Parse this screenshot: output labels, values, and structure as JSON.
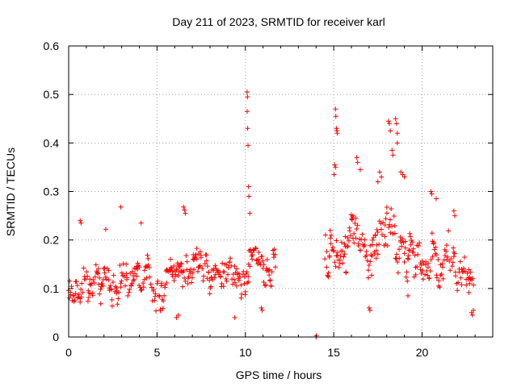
{
  "chart_data": {
    "type": "scatter",
    "title": "Day 211 of 2023, SRMTID for receiver karl",
    "xlabel": "GPS time / hours",
    "ylabel": "SRMTID / TECUs",
    "xlim": [
      0,
      24
    ],
    "ylim": [
      0,
      0.6
    ],
    "xticks": [
      "0",
      "5",
      "10",
      "15",
      "20"
    ],
    "yticks": [
      "0",
      "0.1",
      "0.2",
      "0.3",
      "0.4",
      "0.5",
      "0.6"
    ],
    "grid": true,
    "marker": "plus",
    "color": "#ff0000",
    "series": [
      {
        "name": "SRMTID",
        "segments": [
          {
            "x_start": 0.0,
            "x_end": 11.7,
            "step": 0.05,
            "baseline": [
              [
                0,
                0.1
              ],
              [
                1,
                0.12
              ],
              [
                2,
                0.11
              ],
              [
                3,
                0.12
              ],
              [
                4,
                0.11
              ],
              [
                5,
                0.11
              ],
              [
                6,
                0.12
              ],
              [
                7,
                0.13
              ],
              [
                8,
                0.13
              ],
              [
                9,
                0.15
              ],
              [
                10,
                0.14
              ],
              [
                10.2,
                0.17
              ],
              [
                10.6,
                0.2
              ],
              [
                11,
                0.14
              ],
              [
                11.7,
                0.17
              ]
            ],
            "amplitude": 0.045
          },
          {
            "x_start": 14.5,
            "x_end": 22.9,
            "step": 0.05,
            "baseline": [
              [
                14.5,
                0.16
              ],
              [
                15,
                0.2
              ],
              [
                15.5,
                0.18
              ],
              [
                16,
                0.21
              ],
              [
                16.5,
                0.22
              ],
              [
                17,
                0.18
              ],
              [
                17.5,
                0.19
              ],
              [
                18,
                0.22
              ],
              [
                18.5,
                0.24
              ],
              [
                19,
                0.18
              ],
              [
                19.5,
                0.14
              ],
              [
                20,
                0.18
              ],
              [
                20.5,
                0.15
              ],
              [
                21,
                0.14
              ],
              [
                21.5,
                0.18
              ],
              [
                22,
                0.15
              ],
              [
                22.5,
                0.13
              ],
              [
                22.9,
                0.07
              ]
            ],
            "amplitude": 0.06
          }
        ],
        "extra_points": [
          {
            "x": 10.1,
            "y": 0.505
          },
          {
            "x": 10.12,
            "y": 0.495
          },
          {
            "x": 10.1,
            "y": 0.465
          },
          {
            "x": 10.13,
            "y": 0.43
          },
          {
            "x": 10.15,
            "y": 0.395
          },
          {
            "x": 10.18,
            "y": 0.31
          },
          {
            "x": 10.2,
            "y": 0.29
          },
          {
            "x": 10.25,
            "y": 0.255
          },
          {
            "x": 2.95,
            "y": 0.268
          },
          {
            "x": 4.1,
            "y": 0.235
          },
          {
            "x": 6.5,
            "y": 0.268
          },
          {
            "x": 6.55,
            "y": 0.262
          },
          {
            "x": 6.6,
            "y": 0.255
          },
          {
            "x": 0.65,
            "y": 0.24
          },
          {
            "x": 0.7,
            "y": 0.235
          },
          {
            "x": 2.1,
            "y": 0.222
          },
          {
            "x": 14.0,
            "y": 0.0
          },
          {
            "x": 14.02,
            "y": 0.003
          },
          {
            "x": 15.1,
            "y": 0.47
          },
          {
            "x": 15.12,
            "y": 0.455
          },
          {
            "x": 15.15,
            "y": 0.43
          },
          {
            "x": 15.18,
            "y": 0.425
          },
          {
            "x": 15.2,
            "y": 0.42
          },
          {
            "x": 15.05,
            "y": 0.355
          },
          {
            "x": 15.1,
            "y": 0.35
          },
          {
            "x": 15.02,
            "y": 0.335
          },
          {
            "x": 16.3,
            "y": 0.37
          },
          {
            "x": 16.35,
            "y": 0.36
          },
          {
            "x": 16.5,
            "y": 0.345
          },
          {
            "x": 17.6,
            "y": 0.34
          },
          {
            "x": 17.7,
            "y": 0.33
          },
          {
            "x": 17.5,
            "y": 0.32
          },
          {
            "x": 18.1,
            "y": 0.445
          },
          {
            "x": 18.15,
            "y": 0.44
          },
          {
            "x": 18.2,
            "y": 0.425
          },
          {
            "x": 18.5,
            "y": 0.45
          },
          {
            "x": 18.55,
            "y": 0.44
          },
          {
            "x": 18.6,
            "y": 0.42
          },
          {
            "x": 18.3,
            "y": 0.385
          },
          {
            "x": 18.35,
            "y": 0.375
          },
          {
            "x": 18.6,
            "y": 0.4
          },
          {
            "x": 18.9,
            "y": 0.335
          },
          {
            "x": 19.0,
            "y": 0.33
          },
          {
            "x": 18.8,
            "y": 0.34
          },
          {
            "x": 20.5,
            "y": 0.3
          },
          {
            "x": 20.55,
            "y": 0.295
          },
          {
            "x": 20.8,
            "y": 0.285
          },
          {
            "x": 21.8,
            "y": 0.26
          },
          {
            "x": 21.85,
            "y": 0.25
          },
          {
            "x": 22.8,
            "y": 0.05
          },
          {
            "x": 22.85,
            "y": 0.045
          },
          {
            "x": 22.9,
            "y": 0.055
          },
          {
            "x": 17.0,
            "y": 0.06
          },
          {
            "x": 17.05,
            "y": 0.055
          },
          {
            "x": 19.2,
            "y": 0.085
          },
          {
            "x": 10.9,
            "y": 0.06
          },
          {
            "x": 10.95,
            "y": 0.055
          },
          {
            "x": 9.4,
            "y": 0.04
          },
          {
            "x": 6.1,
            "y": 0.04
          },
          {
            "x": 6.2,
            "y": 0.045
          }
        ]
      }
    ]
  }
}
